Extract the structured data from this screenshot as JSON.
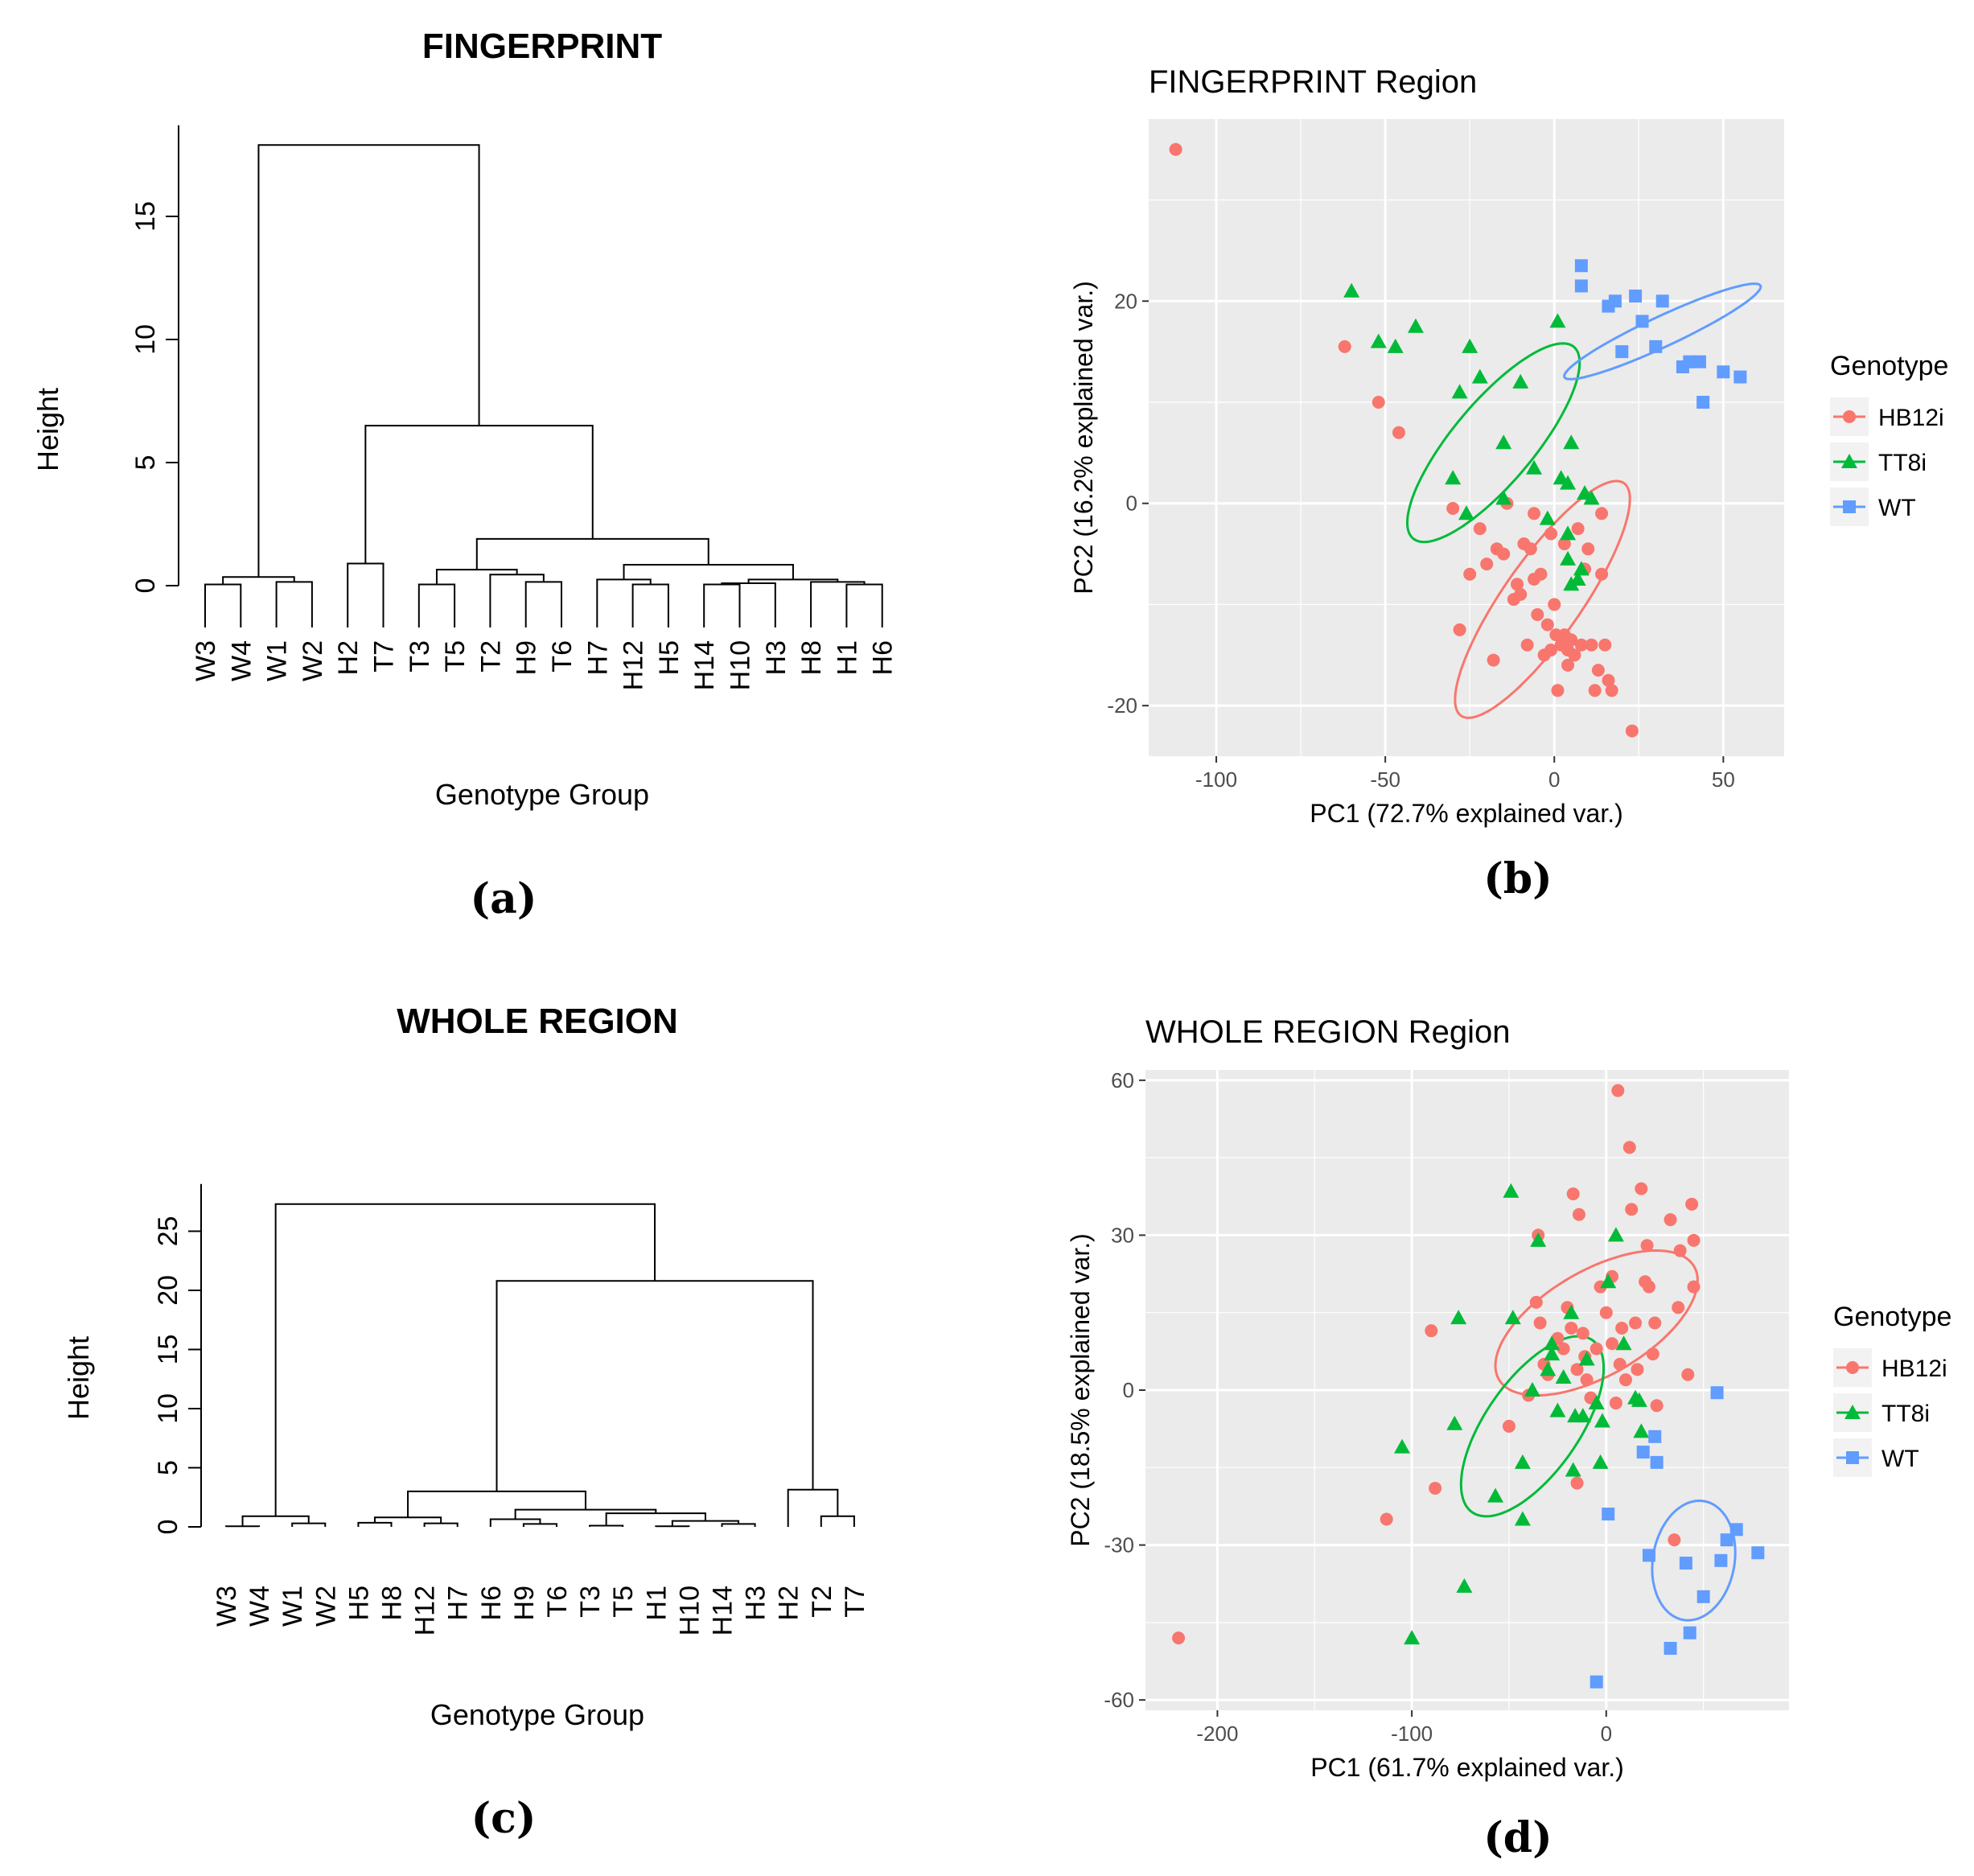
{
  "panels": {
    "a": {
      "label": "(a)"
    },
    "b": {
      "label": "(b)"
    },
    "c": {
      "label": "(c)"
    },
    "d": {
      "label": "(d)"
    }
  },
  "chart_data": [
    {
      "id": "a",
      "type": "dendrogram",
      "title": "FINGERPRINT",
      "xlabel": "Genotype Group",
      "ylabel": "Height",
      "ylim": [
        0,
        18
      ],
      "yticks": [
        0,
        5,
        10,
        15
      ],
      "leaves": [
        "W3",
        "W4",
        "W1",
        "W2",
        "H2",
        "T7",
        "T3",
        "T5",
        "T2",
        "H9",
        "T6",
        "H7",
        "H12",
        "H5",
        "H14",
        "H10",
        "H3",
        "H8",
        "H1",
        "H6"
      ],
      "merges": [
        {
          "a": "W3",
          "b": "W4",
          "h": 0.05
        },
        {
          "a": "W1",
          "b": "W2",
          "h": 0.15
        },
        {
          "a": "H2",
          "b": "T7",
          "h": 0.9
        },
        {
          "a": "T3",
          "b": "T5",
          "h": 0.05
        },
        {
          "a": "H9",
          "b": "T6",
          "h": 0.15
        },
        {
          "a": "H12",
          "b": "H5",
          "h": 0.05
        },
        {
          "a": "H14",
          "b": "H10",
          "h": 0.05
        },
        {
          "a": "H1",
          "b": "H6",
          "h": 0.05
        },
        {
          "a": 0,
          "b": 1,
          "h": 0.35
        },
        {
          "a": "T2",
          "b": 4,
          "h": 0.45
        },
        {
          "a": "H7",
          "b": 5,
          "h": 0.25
        },
        {
          "a": "H8",
          "b": 7,
          "h": 0.15
        },
        {
          "a": 6,
          "b": "H3",
          "h": 0.1
        },
        {
          "a": 12,
          "b": 11,
          "h": 0.25
        },
        {
          "a": 10,
          "b": 13,
          "h": 0.85
        },
        {
          "a": 3,
          "b": 9,
          "h": 0.65
        },
        {
          "a": 15,
          "b": 14,
          "h": 1.9
        },
        {
          "a": 2,
          "b": 16,
          "h": 6.5
        },
        {
          "a": 8,
          "b": 17,
          "h": 17.9
        }
      ]
    },
    {
      "id": "b",
      "type": "scatter",
      "title": "FINGERPRINT Region",
      "xlabel": "PC1 (72.7% explained var.)",
      "ylabel": "PC2 (16.2% explained var.)",
      "xlim": [
        -120,
        68
      ],
      "ylim": [
        -25,
        38
      ],
      "xticks": [
        -100,
        -50,
        0,
        50
      ],
      "yticks": [
        -20,
        0,
        20
      ],
      "legend": {
        "title": "Genotype",
        "position": "right"
      },
      "series": [
        {
          "name": "HB12i",
          "color": "#F8766D",
          "marker": "circle",
          "points": [
            [
              -112,
              35
            ],
            [
              -62,
              15.5
            ],
            [
              -52,
              10
            ],
            [
              -46,
              7
            ],
            [
              -30,
              -0.5
            ],
            [
              -28,
              -12.5
            ],
            [
              -25,
              -7
            ],
            [
              -22,
              -2.5
            ],
            [
              -20,
              -6
            ],
            [
              -18,
              -15.5
            ],
            [
              -17,
              -4.5
            ],
            [
              -15,
              -5
            ],
            [
              -14,
              0
            ],
            [
              -12,
              -9.5
            ],
            [
              -11,
              -8
            ],
            [
              -10,
              -9
            ],
            [
              -9,
              -4
            ],
            [
              -8,
              -14
            ],
            [
              -7,
              -4.5
            ],
            [
              -6,
              -1
            ],
            [
              -5,
              -11
            ],
            [
              -4,
              -7
            ],
            [
              -3,
              -15
            ],
            [
              -2,
              -12
            ],
            [
              -1,
              -14.5
            ],
            [
              0,
              -10
            ],
            [
              0.5,
              -13
            ],
            [
              1,
              -18.5
            ],
            [
              2,
              -14
            ],
            [
              3,
              -13
            ],
            [
              4,
              -14.5
            ],
            [
              4,
              -16
            ],
            [
              5,
              -13.5
            ],
            [
              6,
              -15
            ],
            [
              7,
              -2.5
            ],
            [
              8,
              -14
            ],
            [
              9,
              -6.5
            ],
            [
              10,
              -4.5
            ],
            [
              11,
              -14
            ],
            [
              12,
              -18.5
            ],
            [
              13,
              -16.5
            ],
            [
              14,
              -1
            ],
            [
              14,
              -7
            ],
            [
              15,
              -14
            ],
            [
              16,
              -17.5
            ],
            [
              17,
              -18.5
            ],
            [
              23,
              -22.5
            ],
            [
              -1,
              -3
            ],
            [
              3,
              -4
            ],
            [
              -6,
              -7.5
            ]
          ]
        },
        {
          "name": "TT8i",
          "color": "#00BA38",
          "marker": "triangle",
          "points": [
            [
              -60,
              21
            ],
            [
              -52,
              16
            ],
            [
              -47,
              15.5
            ],
            [
              -41,
              17.5
            ],
            [
              -30,
              2.5
            ],
            [
              -28,
              11
            ],
            [
              -26,
              -1
            ],
            [
              -25,
              15.5
            ],
            [
              -22,
              12.5
            ],
            [
              -15,
              6
            ],
            [
              -15,
              0.5
            ],
            [
              -10,
              12
            ],
            [
              -6,
              3.5
            ],
            [
              -2,
              -1.5
            ],
            [
              1,
              18
            ],
            [
              2,
              2.5
            ],
            [
              4,
              2
            ],
            [
              4,
              -3
            ],
            [
              4,
              -5.5
            ],
            [
              5,
              6
            ],
            [
              5,
              -8
            ],
            [
              7,
              -7.5
            ],
            [
              8,
              -6.5
            ],
            [
              9,
              1
            ],
            [
              11,
              0.5
            ]
          ]
        },
        {
          "name": "WT",
          "color": "#619CFF",
          "marker": "square",
          "points": [
            [
              8,
              23.5
            ],
            [
              8,
              21.5
            ],
            [
              16,
              19.5
            ],
            [
              18,
              20
            ],
            [
              20,
              15
            ],
            [
              24,
              20.5
            ],
            [
              26,
              18
            ],
            [
              30,
              15.5
            ],
            [
              32,
              20
            ],
            [
              38,
              13.5
            ],
            [
              40,
              14
            ],
            [
              44,
              10
            ],
            [
              43,
              14
            ],
            [
              50,
              13
            ],
            [
              55,
              12.5
            ]
          ]
        }
      ],
      "ellipses": [
        {
          "series": "HB12i",
          "cx": -3.5,
          "cy": -9.5,
          "rx": 42,
          "ry": 11.5,
          "angle": -55
        },
        {
          "series": "TT8i",
          "cx": -18,
          "cy": 6,
          "rx": 37,
          "ry": 12,
          "angle": -50
        },
        {
          "series": "WT",
          "cx": 32,
          "cy": 17,
          "rx": 32,
          "ry": 4.5,
          "angle": -25
        }
      ]
    },
    {
      "id": "c",
      "type": "dendrogram",
      "title": "WHOLE REGION",
      "xlabel": "Genotype Group",
      "ylabel": "Height",
      "ylim": [
        0,
        28
      ],
      "yticks": [
        0,
        5,
        10,
        15,
        20,
        25
      ],
      "leaves": [
        "W3",
        "W4",
        "W1",
        "W2",
        "H5",
        "H8",
        "H12",
        "H7",
        "H6",
        "H9",
        "T6",
        "T3",
        "T5",
        "H1",
        "H10",
        "H14",
        "H3",
        "H2",
        "T2",
        "T7"
      ],
      "merges": [
        {
          "a": "W3",
          "b": "W4",
          "h": 0.05
        },
        {
          "a": "W1",
          "b": "W2",
          "h": 0.3
        },
        {
          "a": "H5",
          "b": "H8",
          "h": 0.35
        },
        {
          "a": "H12",
          "b": "H7",
          "h": 0.3
        },
        {
          "a": "H9",
          "b": "T6",
          "h": 0.25
        },
        {
          "a": "T3",
          "b": "T5",
          "h": 0.1
        },
        {
          "a": "H1",
          "b": "H10",
          "h": 0.05
        },
        {
          "a": "H14",
          "b": "H3",
          "h": 0.25
        },
        {
          "a": "T2",
          "b": "T7",
          "h": 0.9
        },
        {
          "a": 0,
          "b": 1,
          "h": 0.9
        },
        {
          "a": 2,
          "b": 3,
          "h": 0.8
        },
        {
          "a": "H6",
          "b": 4,
          "h": 0.65
        },
        {
          "a": 6,
          "b": 7,
          "h": 0.5
        },
        {
          "a": 5,
          "b": 12,
          "h": 1.15
        },
        {
          "a": 11,
          "b": 13,
          "h": 1.45
        },
        {
          "a": 10,
          "b": 14,
          "h": 3.0
        },
        {
          "a": "H2",
          "b": 8,
          "h": 3.15
        },
        {
          "a": 15,
          "b": 16,
          "h": 20.8
        },
        {
          "a": 9,
          "b": 17,
          "h": 27.3
        }
      ]
    },
    {
      "id": "d",
      "type": "scatter",
      "title": "WHOLE REGION Region",
      "xlabel": "PC1 (61.7% explained var.)",
      "ylabel": "PC2 (18.5% explained var.)",
      "xlim": [
        -237,
        94
      ],
      "ylim": [
        -62,
        62
      ],
      "xticks": [
        -200,
        -100,
        0
      ],
      "yticks": [
        -60,
        -30,
        0,
        30,
        60
      ],
      "legend": {
        "title": "Genotype",
        "position": "right"
      },
      "series": [
        {
          "name": "HB12i",
          "color": "#F8766D",
          "marker": "circle",
          "points": [
            [
              -220,
              -48
            ],
            [
              -113,
              -25
            ],
            [
              -90,
              11.5
            ],
            [
              -88,
              -19
            ],
            [
              -50,
              -7
            ],
            [
              -40,
              -1
            ],
            [
              -36,
              17
            ],
            [
              -35,
              30
            ],
            [
              -34,
              13
            ],
            [
              -32,
              5
            ],
            [
              -30,
              3
            ],
            [
              -25,
              10
            ],
            [
              -22,
              8
            ],
            [
              -20,
              16
            ],
            [
              -18,
              12
            ],
            [
              -17,
              38
            ],
            [
              -15,
              -18
            ],
            [
              -15,
              4
            ],
            [
              -14,
              34
            ],
            [
              -12,
              11
            ],
            [
              -11,
              6.5
            ],
            [
              -10,
              2
            ],
            [
              -8,
              -1.5
            ],
            [
              -5,
              8
            ],
            [
              -3,
              20
            ],
            [
              0,
              15
            ],
            [
              3,
              22
            ],
            [
              3,
              9
            ],
            [
              5,
              -2.5
            ],
            [
              6,
              58
            ],
            [
              7,
              5
            ],
            [
              8,
              12
            ],
            [
              10,
              2
            ],
            [
              12,
              47
            ],
            [
              13,
              35
            ],
            [
              15,
              13
            ],
            [
              16,
              4
            ],
            [
              18,
              39
            ],
            [
              20,
              21
            ],
            [
              21,
              28
            ],
            [
              22,
              20
            ],
            [
              24,
              7
            ],
            [
              25,
              13
            ],
            [
              26,
              -3
            ],
            [
              33,
              33
            ],
            [
              35,
              -29
            ],
            [
              37,
              16
            ],
            [
              38,
              27
            ],
            [
              42,
              3
            ],
            [
              44,
              36
            ],
            [
              45,
              29
            ],
            [
              45,
              20
            ]
          ]
        },
        {
          "name": "TT8i",
          "color": "#00BA38",
          "marker": "triangle",
          "points": [
            [
              -105,
              -11
            ],
            [
              -100,
              -48
            ],
            [
              -78,
              -6.5
            ],
            [
              -76,
              14
            ],
            [
              -73,
              -38
            ],
            [
              -57,
              -20.5
            ],
            [
              -49,
              38.5
            ],
            [
              -48,
              14
            ],
            [
              -43,
              -25
            ],
            [
              -43,
              -14
            ],
            [
              -38,
              0
            ],
            [
              -35,
              29
            ],
            [
              -30,
              4
            ],
            [
              -28,
              7
            ],
            [
              -28,
              9
            ],
            [
              -25,
              -4
            ],
            [
              -22,
              2.5
            ],
            [
              -18,
              15
            ],
            [
              -17,
              -15.5
            ],
            [
              -16,
              -5
            ],
            [
              -12,
              -5
            ],
            [
              -10,
              6
            ],
            [
              -5,
              -2.5
            ],
            [
              -3,
              -14
            ],
            [
              -2,
              -6
            ],
            [
              1,
              21
            ],
            [
              5,
              30
            ],
            [
              9,
              9
            ],
            [
              15,
              -1.5
            ],
            [
              17,
              -2
            ],
            [
              18,
              -8
            ]
          ]
        },
        {
          "name": "WT",
          "color": "#619CFF",
          "marker": "square",
          "points": [
            [
              -5,
              -56.5
            ],
            [
              1,
              -24
            ],
            [
              19,
              -12
            ],
            [
              22,
              -32
            ],
            [
              25,
              -9
            ],
            [
              26,
              -14
            ],
            [
              33,
              -50
            ],
            [
              41,
              -33.5
            ],
            [
              43,
              -47
            ],
            [
              50,
              -40
            ],
            [
              57,
              -0.5
            ],
            [
              59,
              -33
            ],
            [
              62,
              -29
            ],
            [
              67,
              -27
            ],
            [
              78,
              -31.5
            ]
          ]
        }
      ],
      "ellipses": [
        {
          "series": "HB12i",
          "cx": -5,
          "cy": 13,
          "rx": 58,
          "ry": 27,
          "angle": -30
        },
        {
          "series": "TT8i",
          "cx": -38,
          "cy": -7,
          "rx": 54,
          "ry": 24,
          "angle": -55
        },
        {
          "series": "WT",
          "cx": 45,
          "cy": -33,
          "rx": 31,
          "ry": 21,
          "angle": -80
        }
      ]
    }
  ]
}
